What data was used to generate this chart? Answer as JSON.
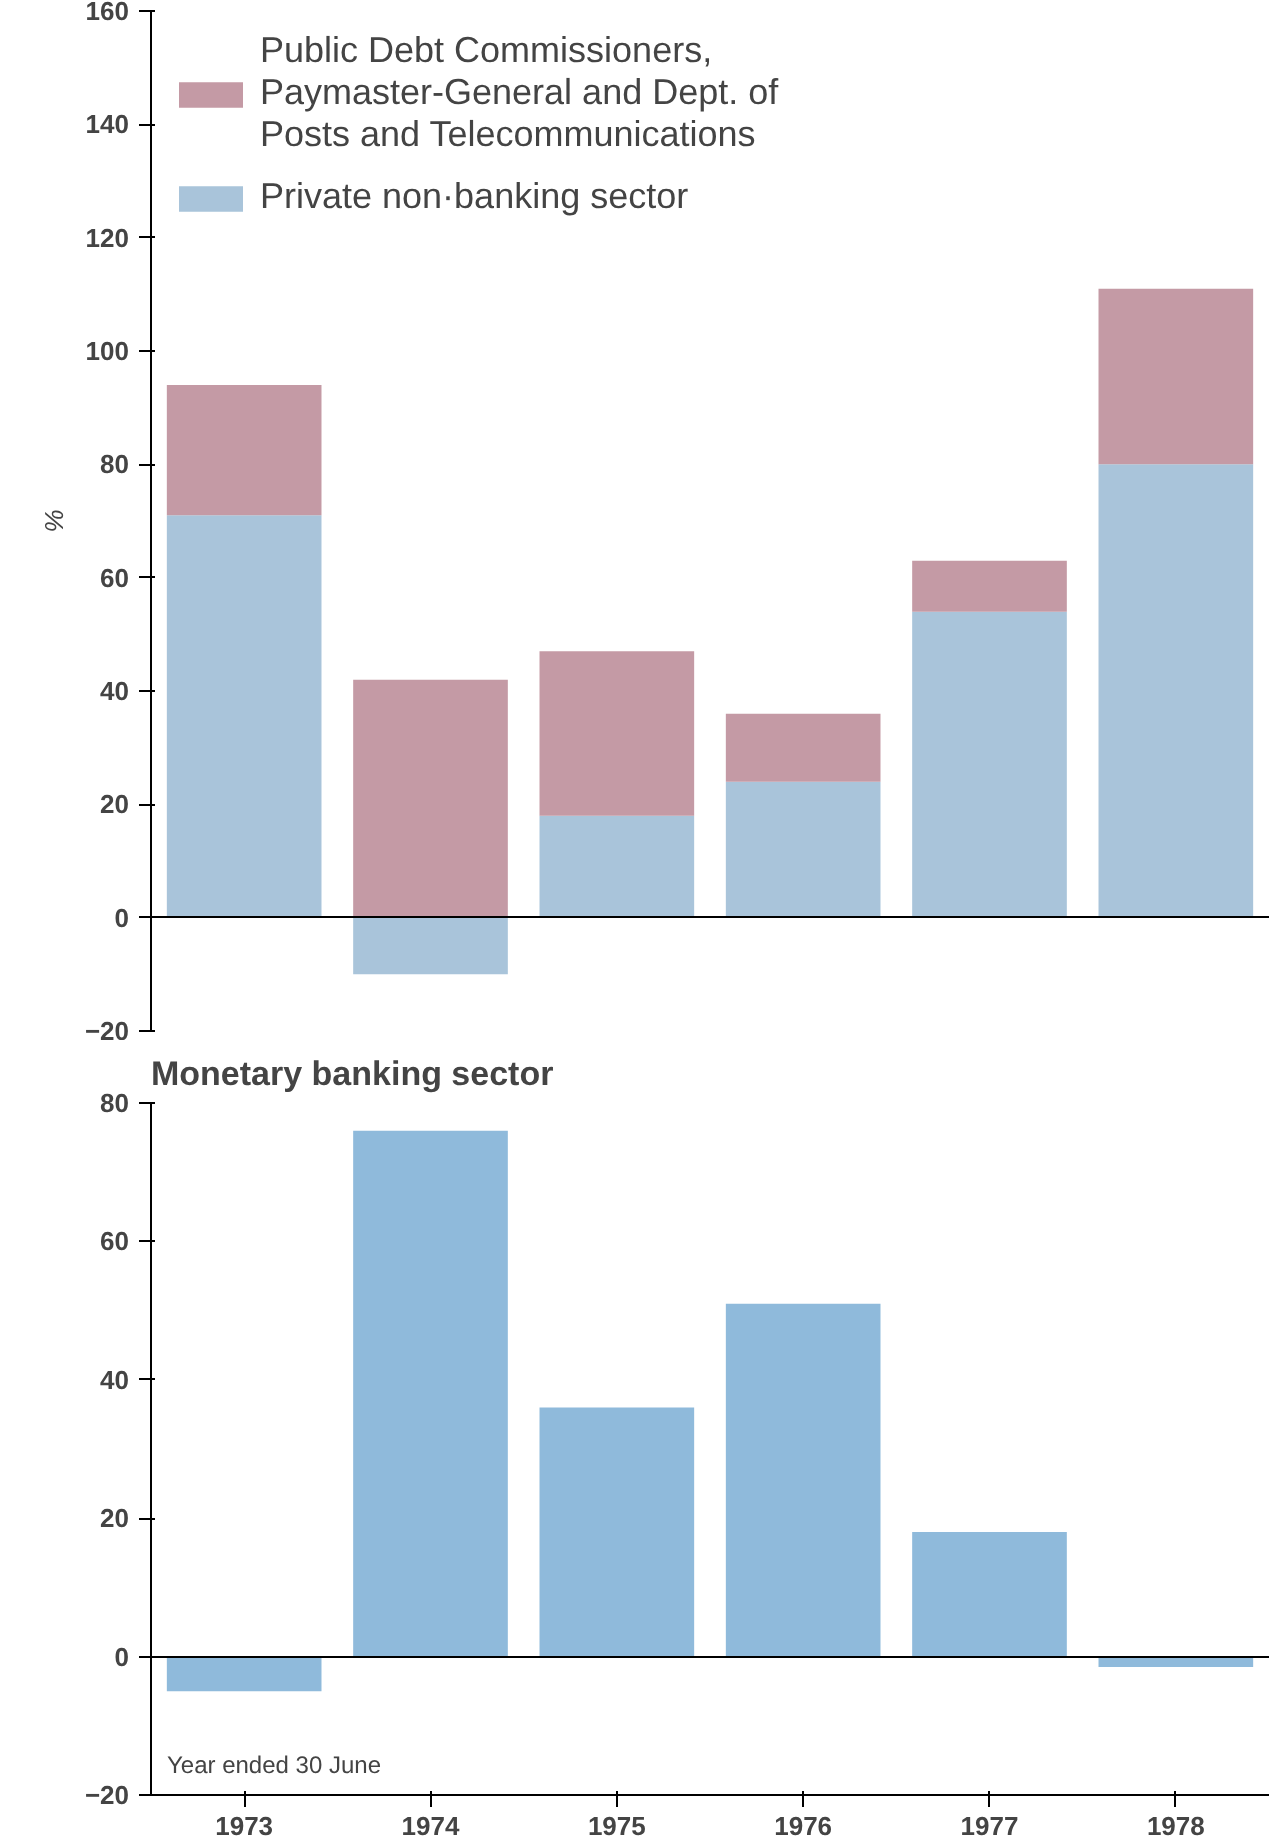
{
  "chart_data": [
    {
      "type": "bar",
      "ylabel": "%",
      "stacked": true,
      "categories": [
        "1973",
        "1974",
        "1975",
        "1976",
        "1977",
        "1978"
      ],
      "tick_labels": "y",
      "legend": "top left",
      "ylim": [
        -20,
        160
      ],
      "yticks": [
        -20,
        0,
        20,
        40,
        60,
        80,
        100,
        120,
        140,
        160
      ],
      "series": [
        {
          "name": "Private non·banking sector",
          "color": "#a9c4da",
          "values": [
            71,
            -10,
            18,
            24,
            54,
            80
          ]
        },
        {
          "name": "Public Debt Commissioners, Paymaster-General and Dept. of Posts and Telecommunications",
          "color": "#c49aa5",
          "values": [
            23,
            42,
            29,
            12,
            9,
            31
          ]
        }
      ]
    },
    {
      "type": "bar",
      "title": "Monetary banking sector",
      "categories": [
        "1973",
        "1974",
        "1975",
        "1976",
        "1977",
        "1978"
      ],
      "ylim": [
        -20,
        80
      ],
      "yticks": [
        -20,
        0,
        20,
        40,
        60,
        80
      ],
      "annotations": [
        "Year ended 30 June"
      ],
      "series": [
        {
          "color": "#8fbadb",
          "values": [
            -5,
            76,
            36,
            51,
            18,
            -1.5
          ]
        }
      ]
    }
  ]
}
